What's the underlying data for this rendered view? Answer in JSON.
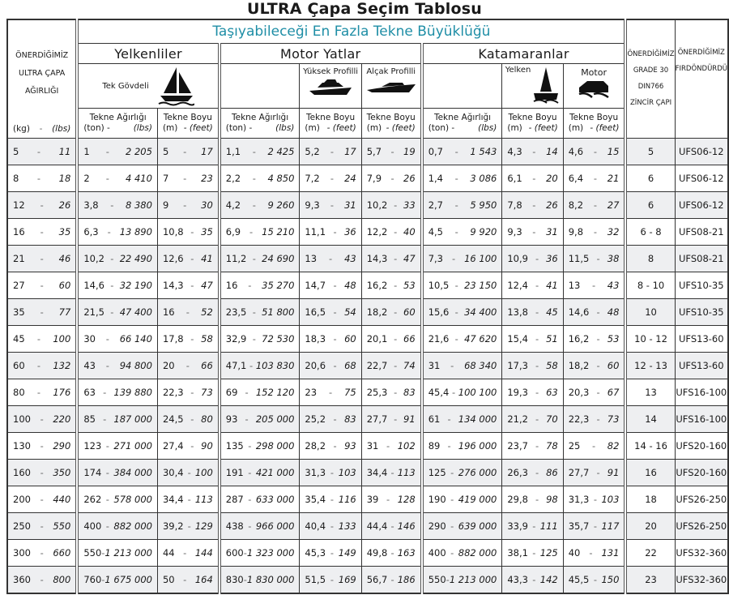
{
  "title": "ULTRA Çapa Seçim Tablosu",
  "header": {
    "main": "Taşıyabileceği En Fazla Tekne Büyüklüğü",
    "anchor_label": [
      "ÖNERDİĞİMİZ",
      "ULTRA ÇAPA",
      "AĞIRLIĞI"
    ],
    "anchor_units": {
      "a": "(kg)",
      "sep": "-",
      "b": "(lbs)"
    },
    "groups": {
      "sail": "Yelkenliler",
      "motor": "Motor Yatlar",
      "cat": "Katamaranlar"
    },
    "subgroups": {
      "mono": "Tek Gövdeli",
      "high": "Yüksek Profilli",
      "low": "Alçak Profilli",
      "cat_sail": "Yelken",
      "cat_motor": "Motor"
    },
    "chain_label": [
      "ÖNERDİĞİMİZ",
      "GRADE 30",
      "DIN766",
      "ZİNCİR ÇAPI"
    ],
    "swivel_label": [
      "ÖNERDİĞİMİZ",
      "FIRDÖNDÜRDÜ"
    ],
    "weight": {
      "title": "Tekne Ağırlığı",
      "a": "(ton) -",
      "b": "(lbs)"
    },
    "length": {
      "title": "Tekne Boyu",
      "a": "(m)",
      "b": "- (feet)"
    },
    "icons": [
      "sailboat-icon",
      "high-profile-yacht-icon",
      "low-profile-yacht-icon",
      "sailing-catamaran-icon",
      "motor-catamaran-icon"
    ]
  },
  "colors": {
    "title_teal": "#1f8ea6",
    "row_shade": "#eeeff1"
  },
  "rows": [
    [
      [
        "5",
        "11"
      ],
      [
        "1",
        "2 205"
      ],
      [
        "5",
        "17"
      ],
      [
        "1,1",
        "2 425"
      ],
      [
        "5,2",
        "17"
      ],
      [
        "5,7",
        "19"
      ],
      [
        "0,7",
        "1 543"
      ],
      [
        "4,3",
        "14"
      ],
      [
        "4,6",
        "15"
      ],
      "5",
      "UFS06-12"
    ],
    [
      [
        "8",
        "18"
      ],
      [
        "2",
        "4 410"
      ],
      [
        "7",
        "23"
      ],
      [
        "2,2",
        "4 850"
      ],
      [
        "7,2",
        "24"
      ],
      [
        "7,9",
        "26"
      ],
      [
        "1,4",
        "3 086"
      ],
      [
        "6,1",
        "20"
      ],
      [
        "6,4",
        "21"
      ],
      "6",
      "UFS06-12"
    ],
    [
      [
        "12",
        "26"
      ],
      [
        "3,8",
        "8 380"
      ],
      [
        "9",
        "30"
      ],
      [
        "4,2",
        "9 260"
      ],
      [
        "9,3",
        "31"
      ],
      [
        "10,2",
        "33"
      ],
      [
        "2,7",
        "5 950"
      ],
      [
        "7,8",
        "26"
      ],
      [
        "8,2",
        "27"
      ],
      "6",
      "UFS06-12"
    ],
    [
      [
        "16",
        "35"
      ],
      [
        "6,3",
        "13 890"
      ],
      [
        "10,8",
        "35"
      ],
      [
        "6,9",
        "15 210"
      ],
      [
        "11,1",
        "36"
      ],
      [
        "12,2",
        "40"
      ],
      [
        "4,5",
        "9 920"
      ],
      [
        "9,3",
        "31"
      ],
      [
        "9,8",
        "32"
      ],
      "6 - 8",
      "UFS08-21"
    ],
    [
      [
        "21",
        "46"
      ],
      [
        "10,2",
        "22 490"
      ],
      [
        "12,6",
        "41"
      ],
      [
        "11,2",
        "24 690"
      ],
      [
        "13",
        "43"
      ],
      [
        "14,3",
        "47"
      ],
      [
        "7,3",
        "16 100"
      ],
      [
        "10,9",
        "36"
      ],
      [
        "11,5",
        "38"
      ],
      "8",
      "UFS08-21"
    ],
    [
      [
        "27",
        "60"
      ],
      [
        "14,6",
        "32 190"
      ],
      [
        "14,3",
        "47"
      ],
      [
        "16",
        "35 270"
      ],
      [
        "14,7",
        "48"
      ],
      [
        "16,2",
        "53"
      ],
      [
        "10,5",
        "23 150"
      ],
      [
        "12,4",
        "41"
      ],
      [
        "13",
        "43"
      ],
      "8 - 10",
      "UFS10-35"
    ],
    [
      [
        "35",
        "77"
      ],
      [
        "21,5",
        "47 400"
      ],
      [
        "16",
        "52"
      ],
      [
        "23,5",
        "51 800"
      ],
      [
        "16,5",
        "54"
      ],
      [
        "18,2",
        "60"
      ],
      [
        "15,6",
        "34 400"
      ],
      [
        "13,8",
        "45"
      ],
      [
        "14,6",
        "48"
      ],
      "10",
      "UFS10-35"
    ],
    [
      [
        "45",
        "100"
      ],
      [
        "30",
        "66 140"
      ],
      [
        "17,8",
        "58"
      ],
      [
        "32,9",
        "72 530"
      ],
      [
        "18,3",
        "60"
      ],
      [
        "20,1",
        "66"
      ],
      [
        "21,6",
        "47 620"
      ],
      [
        "15,4",
        "51"
      ],
      [
        "16,2",
        "53"
      ],
      "10 - 12",
      "UFS13-60"
    ],
    [
      [
        "60",
        "132"
      ],
      [
        "43",
        "94 800"
      ],
      [
        "20",
        "66"
      ],
      [
        "47,1",
        "103 830"
      ],
      [
        "20,6",
        "68"
      ],
      [
        "22,7",
        "74"
      ],
      [
        "31",
        "68 340"
      ],
      [
        "17,3",
        "58"
      ],
      [
        "18,2",
        "60"
      ],
      "12 - 13",
      "UFS13-60"
    ],
    [
      [
        "80",
        "176"
      ],
      [
        "63",
        "139 880"
      ],
      [
        "22,3",
        "73"
      ],
      [
        "69",
        "152 120"
      ],
      [
        "23",
        "75"
      ],
      [
        "25,3",
        "83"
      ],
      [
        "45,4",
        "100 100"
      ],
      [
        "19,3",
        "63"
      ],
      [
        "20,3",
        "67"
      ],
      "13",
      "UFS16-100"
    ],
    [
      [
        "100",
        "220"
      ],
      [
        "85",
        "187 000"
      ],
      [
        "24,5",
        "80"
      ],
      [
        "93",
        "205 000"
      ],
      [
        "25,2",
        "83"
      ],
      [
        "27,7",
        "91"
      ],
      [
        "61",
        "134 000"
      ],
      [
        "21,2",
        "70"
      ],
      [
        "22,3",
        "73"
      ],
      "14",
      "UFS16-100"
    ],
    [
      [
        "130",
        "290"
      ],
      [
        "123",
        "271 000"
      ],
      [
        "27,4",
        "90"
      ],
      [
        "135",
        "298 000"
      ],
      [
        "28,2",
        "93"
      ],
      [
        "31",
        "102"
      ],
      [
        "89",
        "196 000"
      ],
      [
        "23,7",
        "78"
      ],
      [
        "25",
        "82"
      ],
      "14 - 16",
      "UFS20-160"
    ],
    [
      [
        "160",
        "350"
      ],
      [
        "174",
        "384 000"
      ],
      [
        "30,4",
        "100"
      ],
      [
        "191",
        "421 000"
      ],
      [
        "31,3",
        "103"
      ],
      [
        "34,4",
        "113"
      ],
      [
        "125",
        "276 000"
      ],
      [
        "26,3",
        "86"
      ],
      [
        "27,7",
        "91"
      ],
      "16",
      "UFS20-160"
    ],
    [
      [
        "200",
        "440"
      ],
      [
        "262",
        "578 000"
      ],
      [
        "34,4",
        "113"
      ],
      [
        "287",
        "633 000"
      ],
      [
        "35,4",
        "116"
      ],
      [
        "39",
        "128"
      ],
      [
        "190",
        "419 000"
      ],
      [
        "29,8",
        "98"
      ],
      [
        "31,3",
        "103"
      ],
      "18",
      "UFS26-250"
    ],
    [
      [
        "250",
        "550"
      ],
      [
        "400",
        "882 000"
      ],
      [
        "39,2",
        "129"
      ],
      [
        "438",
        "966 000"
      ],
      [
        "40,4",
        "133"
      ],
      [
        "44,4",
        "146"
      ],
      [
        "290",
        "639 000"
      ],
      [
        "33,9",
        "111"
      ],
      [
        "35,7",
        "117"
      ],
      "20",
      "UFS26-250"
    ],
    [
      [
        "300",
        "660"
      ],
      [
        "550",
        "1 213 000"
      ],
      [
        "44",
        "144"
      ],
      [
        "600",
        "1 323 000"
      ],
      [
        "45,3",
        "149"
      ],
      [
        "49,8",
        "163"
      ],
      [
        "400",
        "882 000"
      ],
      [
        "38,1",
        "125"
      ],
      [
        "40",
        "131"
      ],
      "22",
      "UFS32-360"
    ],
    [
      [
        "360",
        "800"
      ],
      [
        "760",
        "1 675 000"
      ],
      [
        "50",
        "164"
      ],
      [
        "830",
        "1 830 000"
      ],
      [
        "51,5",
        "169"
      ],
      [
        "56,7",
        "186"
      ],
      [
        "550",
        "1 213 000"
      ],
      [
        "43,3",
        "142"
      ],
      [
        "45,5",
        "150"
      ],
      "23",
      "UFS32-360"
    ]
  ]
}
